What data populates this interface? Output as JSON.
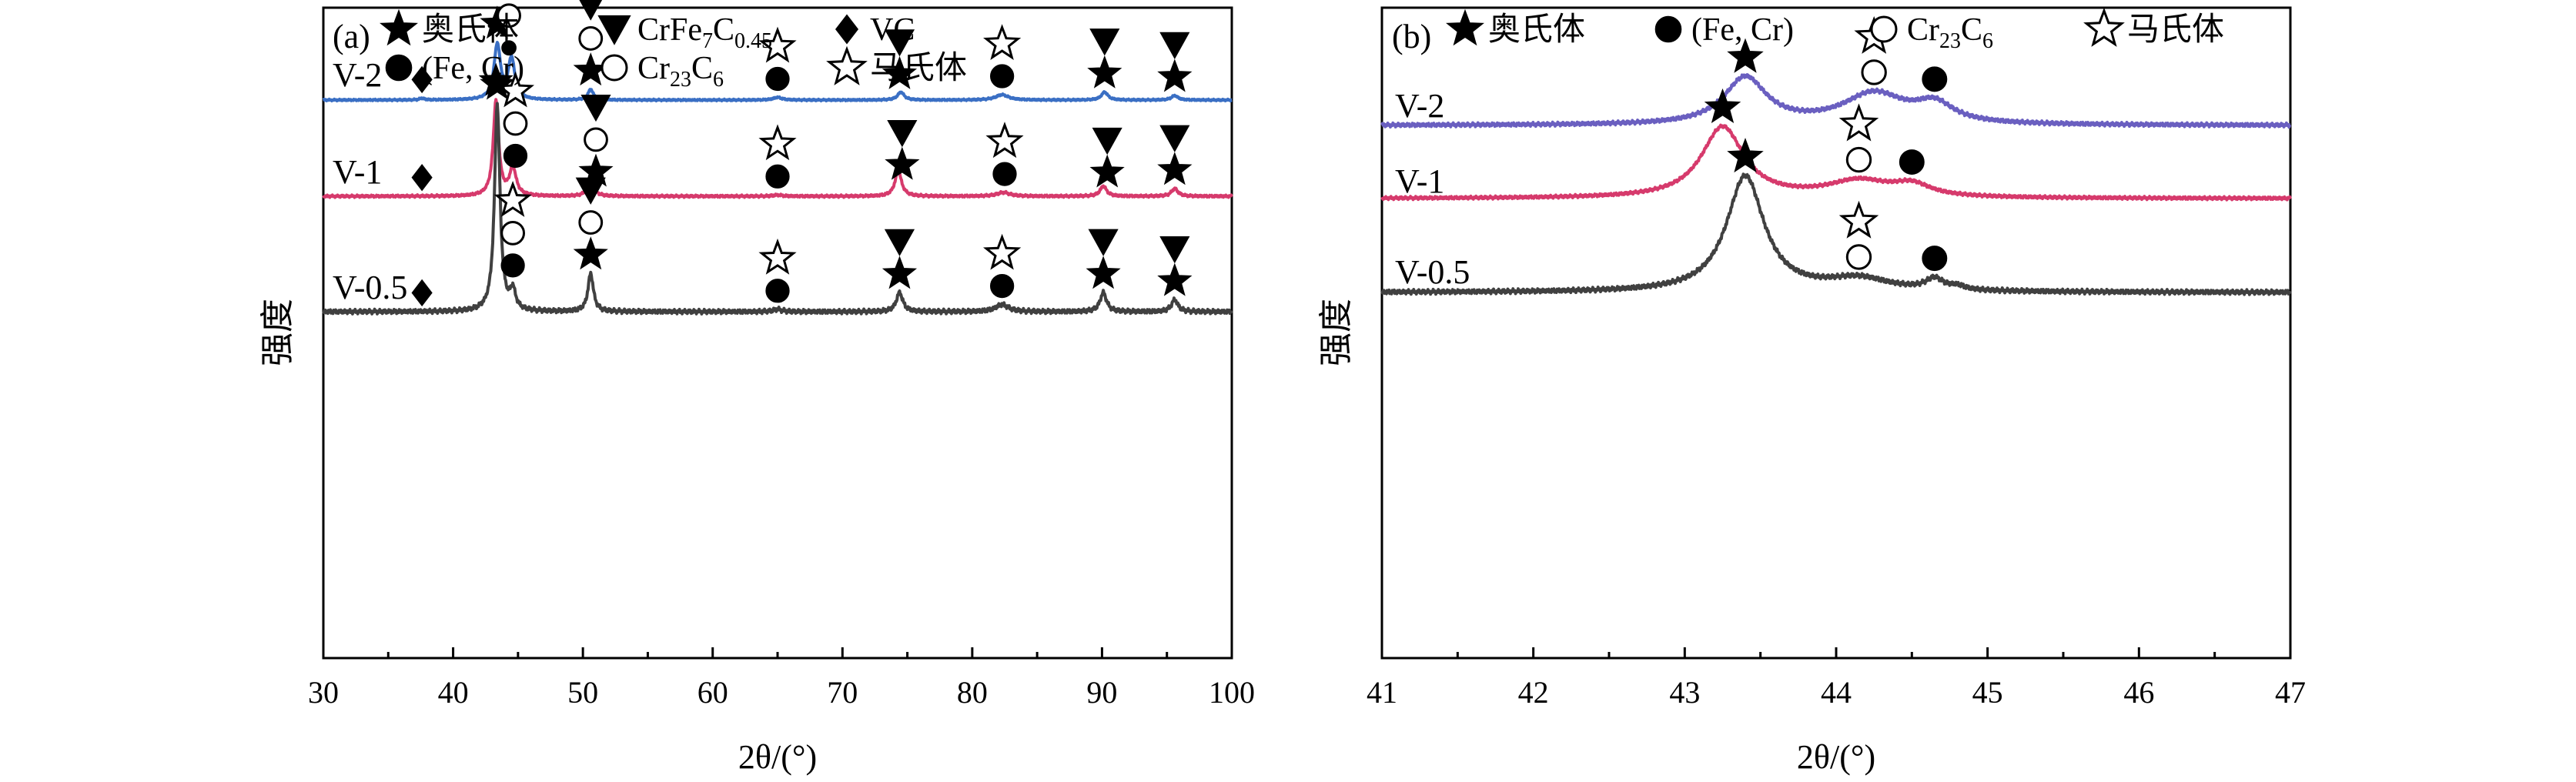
{
  "chart_data": [
    {
      "panel_label": "(a)",
      "type": "line",
      "xlabel": "2θ/(°)",
      "ylabel": "强度",
      "xlim": [
        30,
        100
      ],
      "xticks": [
        30,
        40,
        50,
        60,
        70,
        80,
        90,
        100
      ],
      "legend": {
        "placement": "top",
        "rows": [
          [
            {
              "marker": "star-filled",
              "label": "奥氏体"
            },
            {
              "marker": "triangle-down-filled",
              "label": "CrFe7C0.45"
            },
            {
              "marker": "diamond-filled",
              "label": "VC"
            }
          ],
          [
            {
              "marker": "circle-filled",
              "label": "(Fe, Cr)"
            },
            {
              "marker": "circle-open",
              "label": "Cr23C6"
            },
            {
              "marker": "star-open",
              "label": "马氏体"
            }
          ]
        ]
      },
      "series": [
        {
          "name": "V-2",
          "color": "#3a6fc4",
          "peaks": [
            [
              43.4,
              6.2,
              0.3
            ],
            [
              44.5,
              4.6,
              0.3
            ],
            [
              50.6,
              1.2,
              0.25
            ],
            [
              65.0,
              0.3,
              0.4
            ],
            [
              74.5,
              0.9,
              0.3
            ],
            [
              82.3,
              0.6,
              0.6
            ],
            [
              90.2,
              0.9,
              0.3
            ],
            [
              95.6,
              0.5,
              0.3
            ],
            [
              37.6,
              0.2,
              0.2
            ]
          ],
          "markers": [
            {
              "x": 43.4,
              "symbols": [
                "star-filled"
              ]
            },
            {
              "x": 44.3,
              "symbols": [
                "star-open",
                "circle-open",
                "circle-filled-small"
              ]
            },
            {
              "x": 50.6,
              "symbols": [
                "triangle-down-filled",
                "circle-open",
                "star-filled"
              ]
            },
            {
              "x": 65.0,
              "symbols": [
                "star-open",
                "circle-filled"
              ]
            },
            {
              "x": 74.4,
              "symbols": [
                "triangle-down-filled",
                "star-filled"
              ]
            },
            {
              "x": 82.3,
              "symbols": [
                "star-open",
                "circle-filled"
              ]
            },
            {
              "x": 90.2,
              "symbols": [
                "triangle-down-filled",
                "star-filled"
              ]
            },
            {
              "x": 95.6,
              "symbols": [
                "triangle-down-filled",
                "star-filled"
              ]
            },
            {
              "x": 37.6,
              "symbols": [
                "diamond-filled"
              ]
            }
          ]
        },
        {
          "name": "V-1",
          "color": "#d63a6c",
          "peaks": [
            [
              43.3,
              7.5,
              0.25
            ],
            [
              44.6,
              2.2,
              0.3
            ],
            [
              50.6,
              1.6,
              0.25
            ],
            [
              65.0,
              0.1,
              0.4
            ],
            [
              74.3,
              2.0,
              0.3
            ],
            [
              82.4,
              0.3,
              0.6
            ],
            [
              90.1,
              0.8,
              0.3
            ],
            [
              95.6,
              0.6,
              0.3
            ]
          ],
          "markers": [
            {
              "x": 43.3,
              "symbols": [
                "star-filled"
              ]
            },
            {
              "x": 44.8,
              "symbols": [
                "star-open",
                "circle-open",
                "circle-filled"
              ]
            },
            {
              "x": 51.0,
              "symbols": [
                "triangle-down-filled",
                "circle-open",
                "star-filled"
              ]
            },
            {
              "x": 65.0,
              "symbols": [
                "star-open",
                "circle-filled"
              ]
            },
            {
              "x": 74.6,
              "symbols": [
                "triangle-down-filled",
                "star-filled"
              ]
            },
            {
              "x": 82.5,
              "symbols": [
                "star-open",
                "circle-filled"
              ]
            },
            {
              "x": 90.4,
              "symbols": [
                "triangle-down-filled",
                "star-filled"
              ]
            },
            {
              "x": 95.6,
              "symbols": [
                "triangle-down-filled",
                "star-filled"
              ]
            },
            {
              "x": 37.6,
              "symbols": [
                "diamond-filled"
              ]
            }
          ]
        },
        {
          "name": "V-0.5",
          "color": "#404040",
          "peaks": [
            [
              43.4,
              8.7,
              0.25
            ],
            [
              44.6,
              0.8,
              0.25
            ],
            [
              50.6,
              1.6,
              0.25
            ],
            [
              65.0,
              0.1,
              0.4
            ],
            [
              74.4,
              0.8,
              0.3
            ],
            [
              82.3,
              0.3,
              0.6
            ],
            [
              90.1,
              0.8,
              0.3
            ],
            [
              95.6,
              0.5,
              0.3
            ]
          ],
          "markers": [
            {
              "x": 43.4,
              "symbols": [
                "star-filled"
              ]
            },
            {
              "x": 44.6,
              "symbols": [
                "star-open",
                "circle-open",
                "circle-filled"
              ]
            },
            {
              "x": 50.6,
              "symbols": [
                "triangle-down-filled",
                "circle-open",
                "star-filled"
              ]
            },
            {
              "x": 65.0,
              "symbols": [
                "star-open",
                "circle-filled"
              ]
            },
            {
              "x": 74.4,
              "symbols": [
                "triangle-down-filled",
                "star-filled"
              ]
            },
            {
              "x": 82.3,
              "symbols": [
                "star-open",
                "circle-filled"
              ]
            },
            {
              "x": 90.1,
              "symbols": [
                "triangle-down-filled",
                "star-filled"
              ]
            },
            {
              "x": 95.6,
              "symbols": [
                "triangle-down-filled",
                "star-filled"
              ]
            },
            {
              "x": 37.6,
              "symbols": [
                "diamond-filled"
              ]
            }
          ]
        }
      ]
    },
    {
      "panel_label": "(b)",
      "type": "line",
      "xlabel": "2θ/(°)",
      "ylabel": "强度",
      "xlim": [
        41,
        47
      ],
      "xticks": [
        41,
        42,
        43,
        44,
        45,
        46,
        47
      ],
      "legend": {
        "placement": "top",
        "rows": [
          [
            {
              "marker": "star-filled",
              "label": "奥氏体"
            },
            {
              "marker": "circle-filled",
              "label": "(Fe, Cr)"
            },
            {
              "marker": "circle-open",
              "label": "Cr23C6"
            },
            {
              "marker": "star-open",
              "label": "马氏体"
            }
          ]
        ]
      },
      "series": [
        {
          "name": "V-2",
          "color": "#6a5fc0",
          "peaks": [
            [
              43.4,
              2.3,
              0.17
            ],
            [
              44.25,
              1.5,
              0.25
            ],
            [
              44.65,
              0.9,
              0.15
            ]
          ],
          "markers": [
            {
              "x": 43.4,
              "symbols": [
                "star-filled"
              ]
            },
            {
              "x": 44.25,
              "symbols": [
                "star-open",
                "circle-open"
              ]
            },
            {
              "x": 44.65,
              "symbols": [
                "circle-filled"
              ]
            }
          ]
        },
        {
          "name": "V-1",
          "color": "#d63a6c",
          "peaks": [
            [
              43.25,
              4.4,
              0.17
            ],
            [
              44.15,
              1.0,
              0.25
            ],
            [
              44.5,
              0.7,
              0.15
            ]
          ],
          "markers": [
            {
              "x": 43.25,
              "symbols": [
                "star-filled"
              ]
            },
            {
              "x": 44.15,
              "symbols": [
                "star-open",
                "circle-open"
              ]
            },
            {
              "x": 44.5,
              "symbols": [
                "circle-filled"
              ]
            }
          ]
        },
        {
          "name": "V-0.5",
          "color": "#404040",
          "peaks": [
            [
              43.4,
              4.7,
              0.15
            ],
            [
              44.15,
              0.5,
              0.25
            ],
            [
              44.65,
              0.45,
              0.07
            ],
            [
              44.8,
              0.15,
              0.06
            ]
          ],
          "markers": [
            {
              "x": 43.4,
              "symbols": [
                "star-filled"
              ]
            },
            {
              "x": 44.15,
              "symbols": [
                "star-open",
                "circle-open"
              ]
            },
            {
              "x": 44.65,
              "symbols": [
                "circle-filled"
              ]
            }
          ]
        }
      ]
    }
  ]
}
